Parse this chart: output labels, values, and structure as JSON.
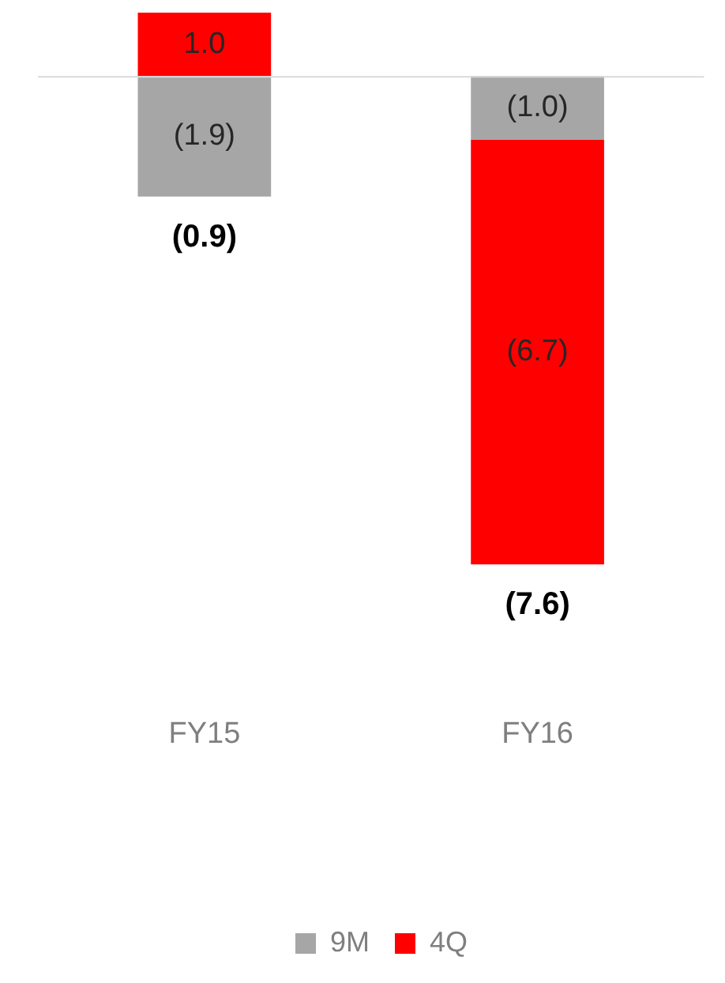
{
  "chart_data": {
    "type": "bar",
    "stacked": true,
    "categories": [
      "FY15",
      "FY16"
    ],
    "series": [
      {
        "name": "9M",
        "color": "#a6a6a6",
        "values": [
          -1.9,
          -1.0
        ],
        "value_labels": [
          "(1.9)",
          "(1.0)"
        ]
      },
      {
        "name": "4Q",
        "color": "#ff0000",
        "values": [
          1.0,
          -6.7
        ],
        "value_labels": [
          "1.0",
          "(6.7)"
        ]
      }
    ],
    "totals": [
      "(0.9)",
      "(7.6)"
    ],
    "legend": "bottom",
    "grid": false
  }
}
